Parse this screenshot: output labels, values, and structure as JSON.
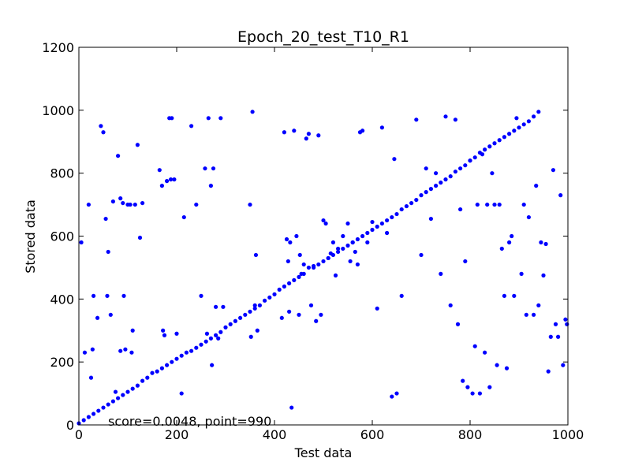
{
  "chart_data": {
    "type": "scatter",
    "title": "Epoch_20_test_T10_R1",
    "xlabel": "Test data",
    "ylabel": "Stored data",
    "xlim": [
      0,
      1000
    ],
    "ylim": [
      0,
      1200
    ],
    "xticks": [
      "0",
      "200",
      "400",
      "600",
      "800",
      "1000"
    ],
    "yticks": [
      "0",
      "200",
      "400",
      "600",
      "800",
      "1000",
      "1200"
    ],
    "annotation": "score=0.0048, point=990",
    "marker_color": "#0000ff",
    "grid": false,
    "x": [
      0,
      10,
      20,
      30,
      40,
      50,
      60,
      70,
      80,
      90,
      100,
      110,
      120,
      130,
      140,
      150,
      160,
      170,
      180,
      190,
      200,
      210,
      220,
      230,
      240,
      250,
      260,
      270,
      280,
      290,
      300,
      310,
      320,
      330,
      340,
      350,
      360,
      370,
      380,
      390,
      400,
      410,
      420,
      430,
      440,
      450,
      460,
      470,
      480,
      490,
      500,
      510,
      520,
      530,
      540,
      550,
      560,
      570,
      580,
      590,
      600,
      610,
      620,
      630,
      640,
      650,
      660,
      670,
      680,
      690,
      700,
      710,
      720,
      730,
      740,
      750,
      760,
      770,
      780,
      790,
      800,
      810,
      820,
      830,
      840,
      850,
      860,
      870,
      880,
      890,
      900,
      910,
      920,
      930,
      940,
      5,
      12,
      20,
      25,
      28,
      30,
      38,
      45,
      50,
      55,
      58,
      60,
      65,
      70,
      75,
      80,
      85,
      85,
      90,
      92,
      95,
      100,
      105,
      108,
      110,
      115,
      120,
      125,
      130,
      165,
      170,
      172,
      175,
      180,
      185,
      188,
      190,
      195,
      200,
      210,
      215,
      230,
      240,
      250,
      258,
      262,
      265,
      270,
      272,
      275,
      280,
      285,
      290,
      295,
      350,
      352,
      355,
      360,
      362,
      365,
      415,
      420,
      425,
      428,
      430,
      432,
      435,
      440,
      445,
      450,
      452,
      455,
      460,
      465,
      470,
      475,
      480,
      485,
      490,
      495,
      500,
      505,
      510,
      515,
      520,
      525,
      530,
      540,
      550,
      555,
      560,
      565,
      570,
      575,
      580,
      590,
      600,
      610,
      620,
      630,
      640,
      645,
      650,
      660,
      690,
      700,
      710,
      720,
      730,
      740,
      750,
      760,
      770,
      775,
      780,
      785,
      790,
      795,
      800,
      805,
      810,
      815,
      820,
      825,
      830,
      835,
      840,
      845,
      850,
      855,
      860,
      865,
      870,
      875,
      880,
      885,
      890,
      895,
      905,
      910,
      915,
      920,
      930,
      935,
      940,
      945,
      950,
      955,
      960,
      965,
      970,
      975,
      980,
      985,
      990,
      995,
      998
    ],
    "y": [
      5,
      15,
      25,
      35,
      45,
      55,
      65,
      75,
      85,
      95,
      105,
      115,
      125,
      140,
      150,
      165,
      170,
      180,
      190,
      200,
      210,
      220,
      230,
      235,
      245,
      255,
      265,
      275,
      285,
      295,
      310,
      320,
      330,
      340,
      350,
      360,
      370,
      380,
      395,
      405,
      415,
      430,
      440,
      450,
      460,
      470,
      480,
      500,
      505,
      510,
      520,
      530,
      540,
      550,
      560,
      570,
      580,
      590,
      600,
      610,
      620,
      630,
      640,
      650,
      660,
      670,
      685,
      695,
      705,
      715,
      730,
      740,
      750,
      760,
      770,
      780,
      790,
      805,
      815,
      825,
      840,
      850,
      865,
      875,
      885,
      895,
      905,
      915,
      925,
      935,
      945,
      955,
      965,
      980,
      995,
      580,
      230,
      700,
      150,
      240,
      410,
      340,
      950,
      930,
      655,
      410,
      550,
      350,
      710,
      105,
      855,
      235,
      720,
      705,
      410,
      240,
      700,
      700,
      230,
      300,
      700,
      890,
      595,
      705,
      810,
      760,
      300,
      285,
      775,
      975,
      780,
      975,
      780,
      290,
      100,
      660,
      950,
      700,
      410,
      815,
      290,
      975,
      760,
      190,
      815,
      375,
      275,
      975,
      375,
      700,
      280,
      995,
      380,
      540,
      300,
      340,
      930,
      590,
      520,
      360,
      580,
      55,
      935,
      600,
      350,
      540,
      480,
      510,
      910,
      925,
      380,
      500,
      330,
      920,
      350,
      650,
      640,
      530,
      545,
      580,
      475,
      560,
      600,
      640,
      520,
      580,
      550,
      510,
      930,
      935,
      580,
      645,
      370,
      945,
      610,
      90,
      845,
      100,
      410,
      970,
      540,
      815,
      655,
      800,
      480,
      980,
      380,
      970,
      320,
      685,
      140,
      520,
      120,
      840,
      100,
      250,
      700,
      100,
      860,
      230,
      700,
      120,
      800,
      700,
      190,
      700,
      560,
      410,
      180,
      580,
      600,
      410,
      975,
      480,
      700,
      350,
      660,
      350,
      760,
      380,
      580,
      475,
      575,
      170,
      280,
      810,
      320,
      280,
      730,
      190,
      335,
      320
    ]
  }
}
